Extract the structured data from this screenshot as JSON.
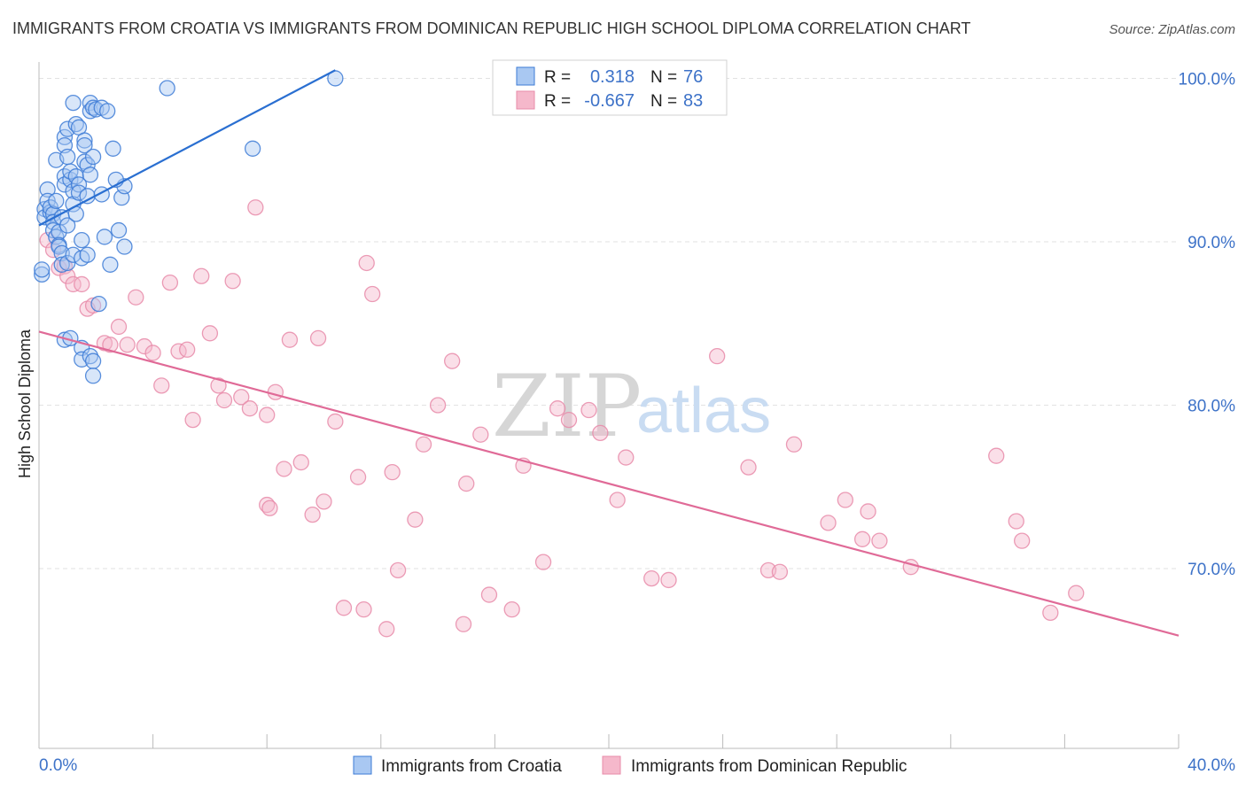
{
  "header": {
    "title": "IMMIGRANTS FROM CROATIA VS IMMIGRANTS FROM DOMINICAN REPUBLIC HIGH SCHOOL DIPLOMA CORRELATION CHART",
    "source": "Source: ZipAtlas.com"
  },
  "watermark": {
    "zip": "ZIP",
    "atlas": "atlas"
  },
  "legend_top": {
    "rows": [
      {
        "r_label": "R =",
        "r_value": "0.318",
        "n_label": "N =",
        "n_value": "76"
      },
      {
        "r_label": "R =",
        "r_value": "-0.667",
        "n_label": "N =",
        "n_value": "83"
      }
    ]
  },
  "legend_bottom": {
    "items": [
      "Immigrants from Croatia",
      "Immigrants from Dominican Republic"
    ]
  },
  "colors": {
    "blue_fill": "#a9c8f2",
    "blue_stroke": "#3d7bd6",
    "blue_line": "#2a6fd1",
    "pink_fill": "#f5b8cb",
    "pink_stroke": "#e88ba9",
    "pink_line": "#e06a97",
    "tick_text": "#3d72c8",
    "grid": "#e2e2e2"
  },
  "chart_data": {
    "type": "scatter",
    "title": "IMMIGRANTS FROM CROATIA VS IMMIGRANTS FROM DOMINICAN REPUBLIC HIGH SCHOOL DIPLOMA CORRELATION CHART",
    "xlabel": "",
    "ylabel": "High School Diploma",
    "xlim": [
      0,
      40
    ],
    "ylim": [
      59,
      101
    ],
    "x_tick_labels": [
      "0.0%",
      "40.0%"
    ],
    "y_tick_values": [
      70,
      80,
      90,
      100
    ],
    "y_tick_labels": [
      "70.0%",
      "80.0%",
      "90.0%",
      "100.0%"
    ],
    "grid": true,
    "legend_placement": "top-center",
    "series": [
      {
        "name": "Immigrants from Croatia",
        "r": 0.318,
        "n": 76,
        "trend": {
          "x": [
            0.0,
            10.4
          ],
          "y": [
            91.0,
            100.5
          ]
        },
        "points": [
          [
            0.1,
            88.0
          ],
          [
            0.1,
            88.3
          ],
          [
            0.2,
            92.0
          ],
          [
            0.2,
            91.5
          ],
          [
            0.3,
            93.2
          ],
          [
            0.3,
            92.5
          ],
          [
            0.4,
            91.8
          ],
          [
            0.4,
            92.1
          ],
          [
            0.5,
            91.7
          ],
          [
            0.5,
            91.2
          ],
          [
            0.5,
            90.7
          ],
          [
            0.6,
            95.0
          ],
          [
            0.6,
            90.3
          ],
          [
            0.6,
            92.5
          ],
          [
            0.7,
            90.6
          ],
          [
            0.7,
            89.8
          ],
          [
            0.7,
            89.7
          ],
          [
            0.8,
            91.5
          ],
          [
            0.8,
            89.3
          ],
          [
            0.8,
            88.6
          ],
          [
            0.9,
            96.4
          ],
          [
            0.9,
            95.9
          ],
          [
            0.9,
            94.0
          ],
          [
            0.9,
            93.5
          ],
          [
            0.9,
            84.0
          ],
          [
            1.0,
            96.9
          ],
          [
            1.0,
            95.2
          ],
          [
            1.1,
            93.8
          ],
          [
            1.1,
            94.3
          ],
          [
            1.0,
            91.0
          ],
          [
            1.0,
            88.7
          ],
          [
            1.1,
            84.1
          ],
          [
            1.2,
            98.5
          ],
          [
            1.2,
            93.1
          ],
          [
            1.2,
            92.3
          ],
          [
            1.2,
            89.2
          ],
          [
            1.3,
            97.2
          ],
          [
            1.3,
            94.0
          ],
          [
            1.3,
            91.7
          ],
          [
            1.4,
            97.0
          ],
          [
            1.4,
            93.5
          ],
          [
            1.4,
            93.0
          ],
          [
            1.5,
            90.1
          ],
          [
            1.5,
            89.0
          ],
          [
            1.5,
            83.5
          ],
          [
            1.5,
            82.8
          ],
          [
            1.6,
            96.2
          ],
          [
            1.6,
            95.9
          ],
          [
            1.6,
            94.9
          ],
          [
            1.7,
            94.7
          ],
          [
            1.7,
            92.8
          ],
          [
            1.7,
            89.2
          ],
          [
            1.8,
            98.5
          ],
          [
            1.8,
            98.0
          ],
          [
            1.8,
            94.1
          ],
          [
            1.8,
            83.0
          ],
          [
            1.9,
            98.2
          ],
          [
            1.9,
            95.2
          ],
          [
            1.9,
            82.7
          ],
          [
            1.9,
            81.8
          ],
          [
            2.0,
            98.1
          ],
          [
            2.1,
            86.2
          ],
          [
            2.2,
            98.2
          ],
          [
            2.2,
            92.9
          ],
          [
            2.3,
            90.3
          ],
          [
            2.4,
            98.0
          ],
          [
            2.5,
            88.6
          ],
          [
            2.6,
            95.7
          ],
          [
            2.8,
            90.7
          ],
          [
            2.9,
            92.7
          ],
          [
            3.0,
            93.4
          ],
          [
            3.0,
            89.7
          ],
          [
            2.7,
            93.8
          ],
          [
            4.5,
            99.4
          ],
          [
            7.5,
            95.7
          ],
          [
            10.4,
            100.0
          ]
        ]
      },
      {
        "name": "Immigrants from Dominican Republic",
        "r": -0.667,
        "n": 83,
        "trend": {
          "x": [
            0.0,
            40.0
          ],
          "y": [
            84.5,
            65.9
          ]
        },
        "points": [
          [
            0.3,
            90.1
          ],
          [
            0.5,
            89.5
          ],
          [
            0.7,
            88.4
          ],
          [
            0.9,
            88.5
          ],
          [
            1.0,
            87.9
          ],
          [
            1.2,
            87.4
          ],
          [
            1.5,
            87.4
          ],
          [
            1.7,
            85.9
          ],
          [
            1.9,
            86.1
          ],
          [
            2.3,
            83.8
          ],
          [
            2.5,
            83.7
          ],
          [
            2.8,
            84.8
          ],
          [
            3.1,
            83.7
          ],
          [
            3.4,
            86.6
          ],
          [
            3.7,
            83.6
          ],
          [
            4.0,
            83.2
          ],
          [
            4.3,
            81.2
          ],
          [
            4.6,
            87.5
          ],
          [
            4.9,
            83.3
          ],
          [
            5.2,
            83.4
          ],
          [
            5.4,
            79.1
          ],
          [
            5.7,
            87.9
          ],
          [
            6.0,
            84.4
          ],
          [
            6.3,
            81.2
          ],
          [
            6.5,
            80.3
          ],
          [
            6.8,
            87.6
          ],
          [
            7.1,
            80.5
          ],
          [
            7.4,
            79.8
          ],
          [
            7.6,
            92.1
          ],
          [
            8.0,
            79.4
          ],
          [
            8.3,
            80.8
          ],
          [
            8.6,
            76.1
          ],
          [
            8.0,
            73.9
          ],
          [
            8.1,
            73.7
          ],
          [
            8.8,
            84.0
          ],
          [
            9.2,
            76.5
          ],
          [
            9.6,
            73.3
          ],
          [
            9.8,
            84.1
          ],
          [
            10.0,
            74.1
          ],
          [
            10.4,
            79.0
          ],
          [
            10.7,
            67.6
          ],
          [
            11.2,
            75.6
          ],
          [
            11.4,
            67.5
          ],
          [
            11.5,
            88.7
          ],
          [
            11.7,
            86.8
          ],
          [
            12.2,
            66.3
          ],
          [
            12.4,
            75.9
          ],
          [
            12.6,
            69.9
          ],
          [
            13.2,
            73.0
          ],
          [
            13.5,
            77.6
          ],
          [
            14.0,
            80.0
          ],
          [
            14.5,
            82.7
          ],
          [
            14.9,
            66.6
          ],
          [
            15.0,
            75.2
          ],
          [
            15.5,
            78.2
          ],
          [
            15.8,
            68.4
          ],
          [
            16.6,
            67.5
          ],
          [
            17.0,
            76.3
          ],
          [
            17.7,
            70.4
          ],
          [
            18.2,
            79.8
          ],
          [
            18.6,
            79.1
          ],
          [
            19.3,
            79.7
          ],
          [
            19.7,
            78.3
          ],
          [
            20.3,
            74.2
          ],
          [
            20.6,
            76.8
          ],
          [
            21.5,
            69.4
          ],
          [
            22.1,
            69.3
          ],
          [
            23.8,
            83.0
          ],
          [
            24.9,
            76.2
          ],
          [
            25.6,
            69.9
          ],
          [
            26.0,
            69.8
          ],
          [
            26.5,
            77.6
          ],
          [
            27.7,
            72.8
          ],
          [
            28.3,
            74.2
          ],
          [
            28.9,
            71.8
          ],
          [
            29.1,
            73.5
          ],
          [
            29.5,
            71.7
          ],
          [
            30.6,
            70.1
          ],
          [
            33.6,
            76.9
          ],
          [
            34.3,
            72.9
          ],
          [
            34.5,
            71.7
          ],
          [
            35.5,
            67.3
          ],
          [
            36.4,
            68.5
          ]
        ]
      }
    ]
  }
}
